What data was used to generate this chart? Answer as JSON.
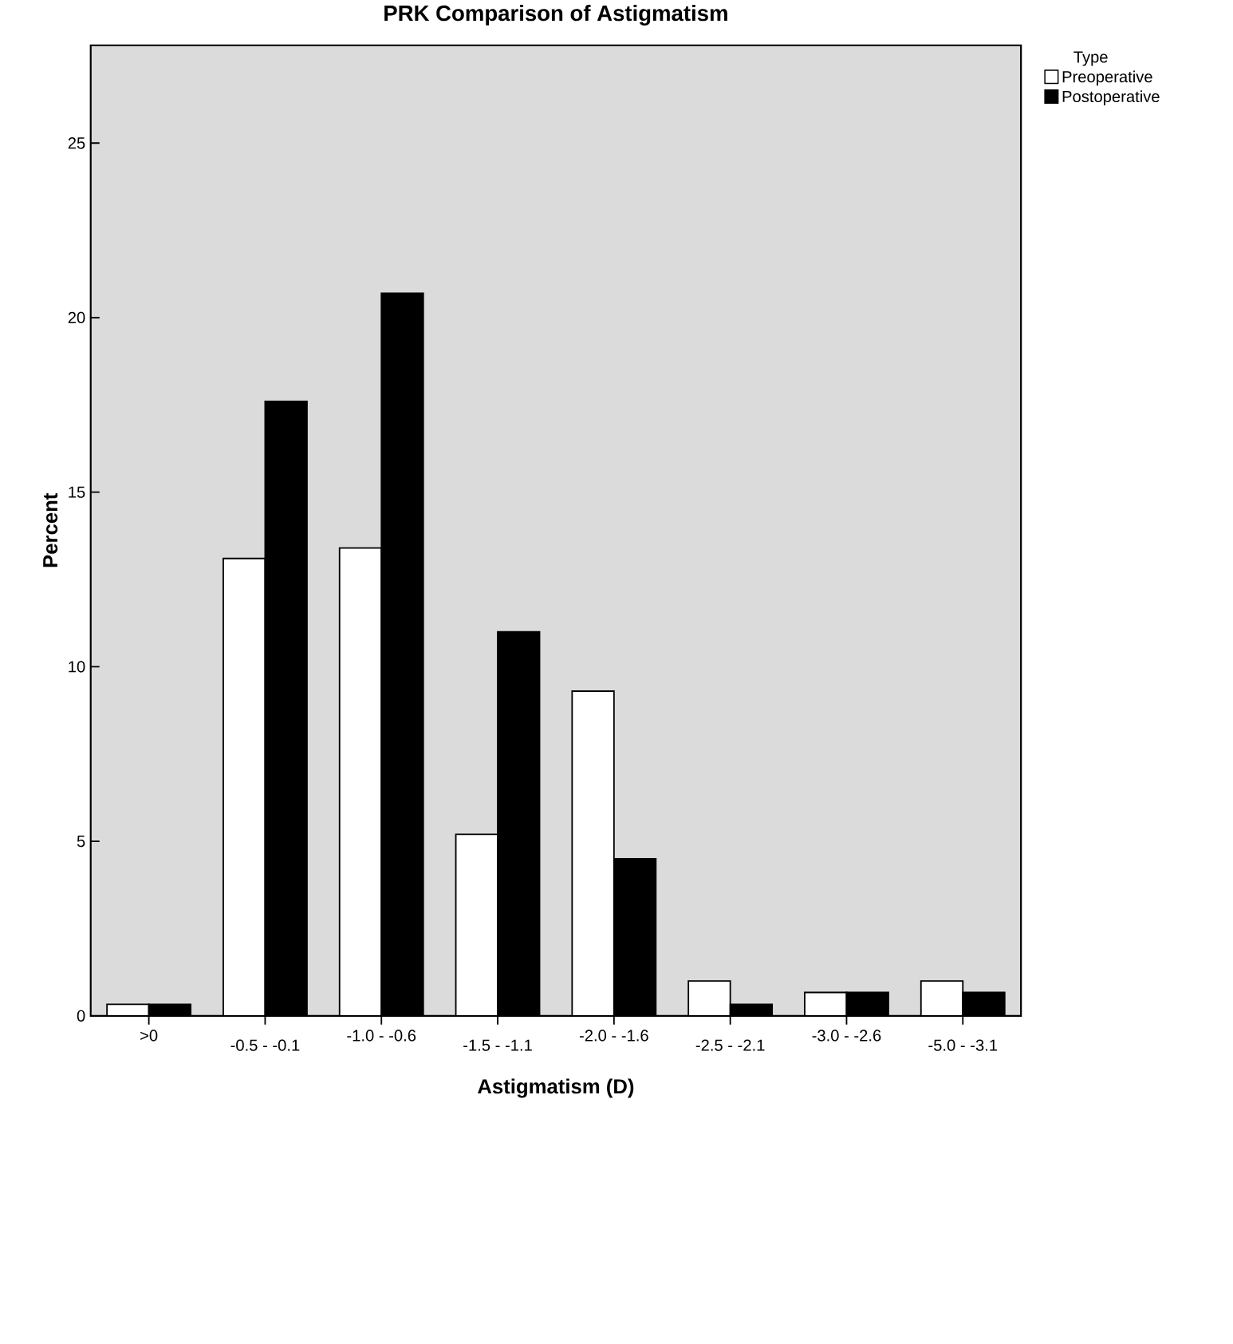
{
  "chart_data": {
    "type": "bar",
    "title": "PRK Comparison of Astigmatism",
    "xlabel": "Astigmatism (D)",
    "ylabel": "Percent",
    "legend_title": "Type",
    "legend": "top right",
    "categories": [
      ">0",
      "-0.5 - -0.1",
      "-1.0 - -0.6",
      "-1.5 - -1.1",
      "-2.0 - -1.6",
      "-2.5 - -2.1",
      "-3.0 - -2.6",
      "-5.0 - -3.1"
    ],
    "series": [
      {
        "name": "Preoperative",
        "color": "#ffffff",
        "values": [
          0.33,
          13.1,
          13.4,
          5.2,
          9.3,
          1.0,
          0.67,
          1.0
        ]
      },
      {
        "name": "Postoperative",
        "color": "#000000",
        "values": [
          0.33,
          17.6,
          20.7,
          11.0,
          4.5,
          0.33,
          0.67,
          0.67
        ]
      }
    ],
    "ylim": [
      0,
      27.8
    ],
    "yticks": [
      0,
      5,
      10,
      15,
      20,
      25
    ],
    "grid": false
  }
}
